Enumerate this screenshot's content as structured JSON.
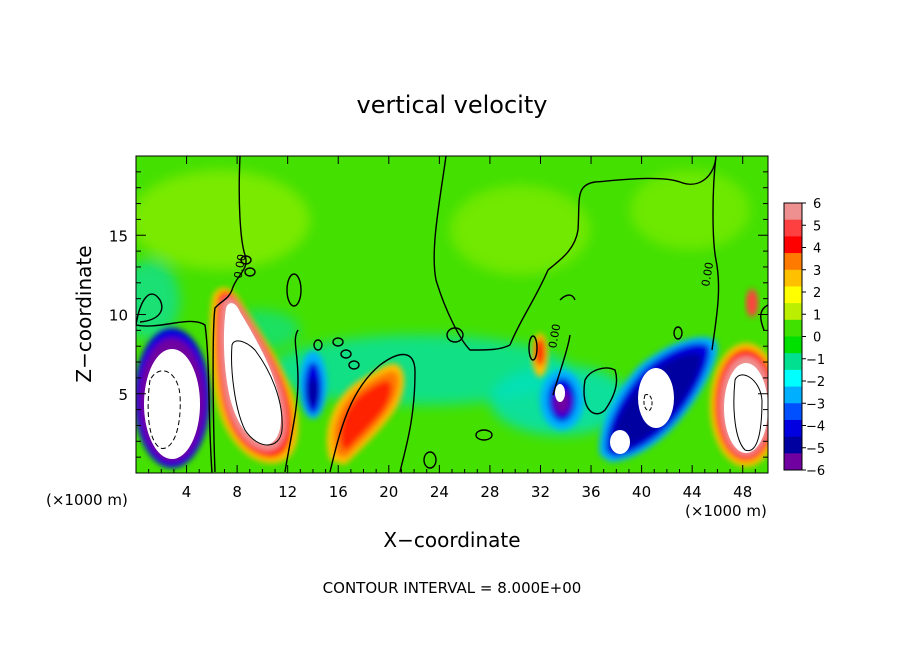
{
  "chart_data": {
    "type": "heatmap",
    "title": "vertical velocity",
    "xlabel": "X−coordinate",
    "ylabel": "Z−coordinate",
    "x_unit_left": "(×1000 m)",
    "x_unit_right": "(×1000 m)",
    "footer": "CONTOUR INTERVAL = 8.000E+00",
    "xlim": [
      0,
      50
    ],
    "ylim": [
      0,
      20
    ],
    "x_ticks": [
      4,
      8,
      12,
      16,
      20,
      24,
      28,
      32,
      36,
      40,
      44,
      48
    ],
    "x_tick_labels": [
      "4",
      "8",
      "12",
      "16",
      "20",
      "24",
      "28",
      "32",
      "36",
      "40",
      "44",
      "48"
    ],
    "y_ticks": [
      5,
      10,
      15
    ],
    "y_tick_labels": [
      "5",
      "10",
      "15"
    ],
    "contour_labels": [
      {
        "text": "0.00",
        "x": 8.5,
        "y": 13.0
      },
      {
        "text": "0.00",
        "x": 33.4,
        "y": 8.6
      },
      {
        "text": "0.00",
        "x": 45.5,
        "y": 12.5
      }
    ],
    "colorbar": {
      "min": -6,
      "max": 6,
      "tick_labels": [
        "6",
        "5",
        "4",
        "3",
        "2",
        "1",
        "0",
        "−1",
        "−2",
        "−3",
        "−4",
        "−5",
        "−6"
      ],
      "colors": [
        "#ee9090",
        "#ff4040",
        "#ff0000",
        "#ff7a00",
        "#ffc000",
        "#ffff00",
        "#bbee00",
        "#40e000",
        "#00e000",
        "#00e090",
        "#00ffff",
        "#00b0ff",
        "#0050ff",
        "#0000e0",
        "#0000a0",
        "#7000a0"
      ]
    },
    "features": [
      {
        "x": 2.5,
        "z": 4.2,
        "w": 2.0,
        "type": "up"
      },
      {
        "x": 1.0,
        "z": 6.5,
        "w": -4.5,
        "type": "down"
      },
      {
        "x": 4.5,
        "z": 3.5,
        "w": -4.0,
        "type": "down"
      },
      {
        "x": 8.5,
        "z": 5.5,
        "w": 2.0,
        "type": "up"
      },
      {
        "x": 13.8,
        "z": 5.5,
        "w": -5.0,
        "type": "down"
      },
      {
        "x": 17.0,
        "z": 4.0,
        "w": 4.5,
        "type": "up"
      },
      {
        "x": 20.0,
        "z": 5.5,
        "w": 3.0,
        "type": "up"
      },
      {
        "x": 31.5,
        "z": 7.5,
        "w": 4.0,
        "type": "up"
      },
      {
        "x": 33.0,
        "z": 5.0,
        "w": -5.0,
        "type": "down"
      },
      {
        "x": 40.5,
        "z": 5.5,
        "w": -5.5,
        "type": "down"
      },
      {
        "x": 48.0,
        "z": 4.5,
        "w": 2.0,
        "type": "up"
      }
    ]
  }
}
